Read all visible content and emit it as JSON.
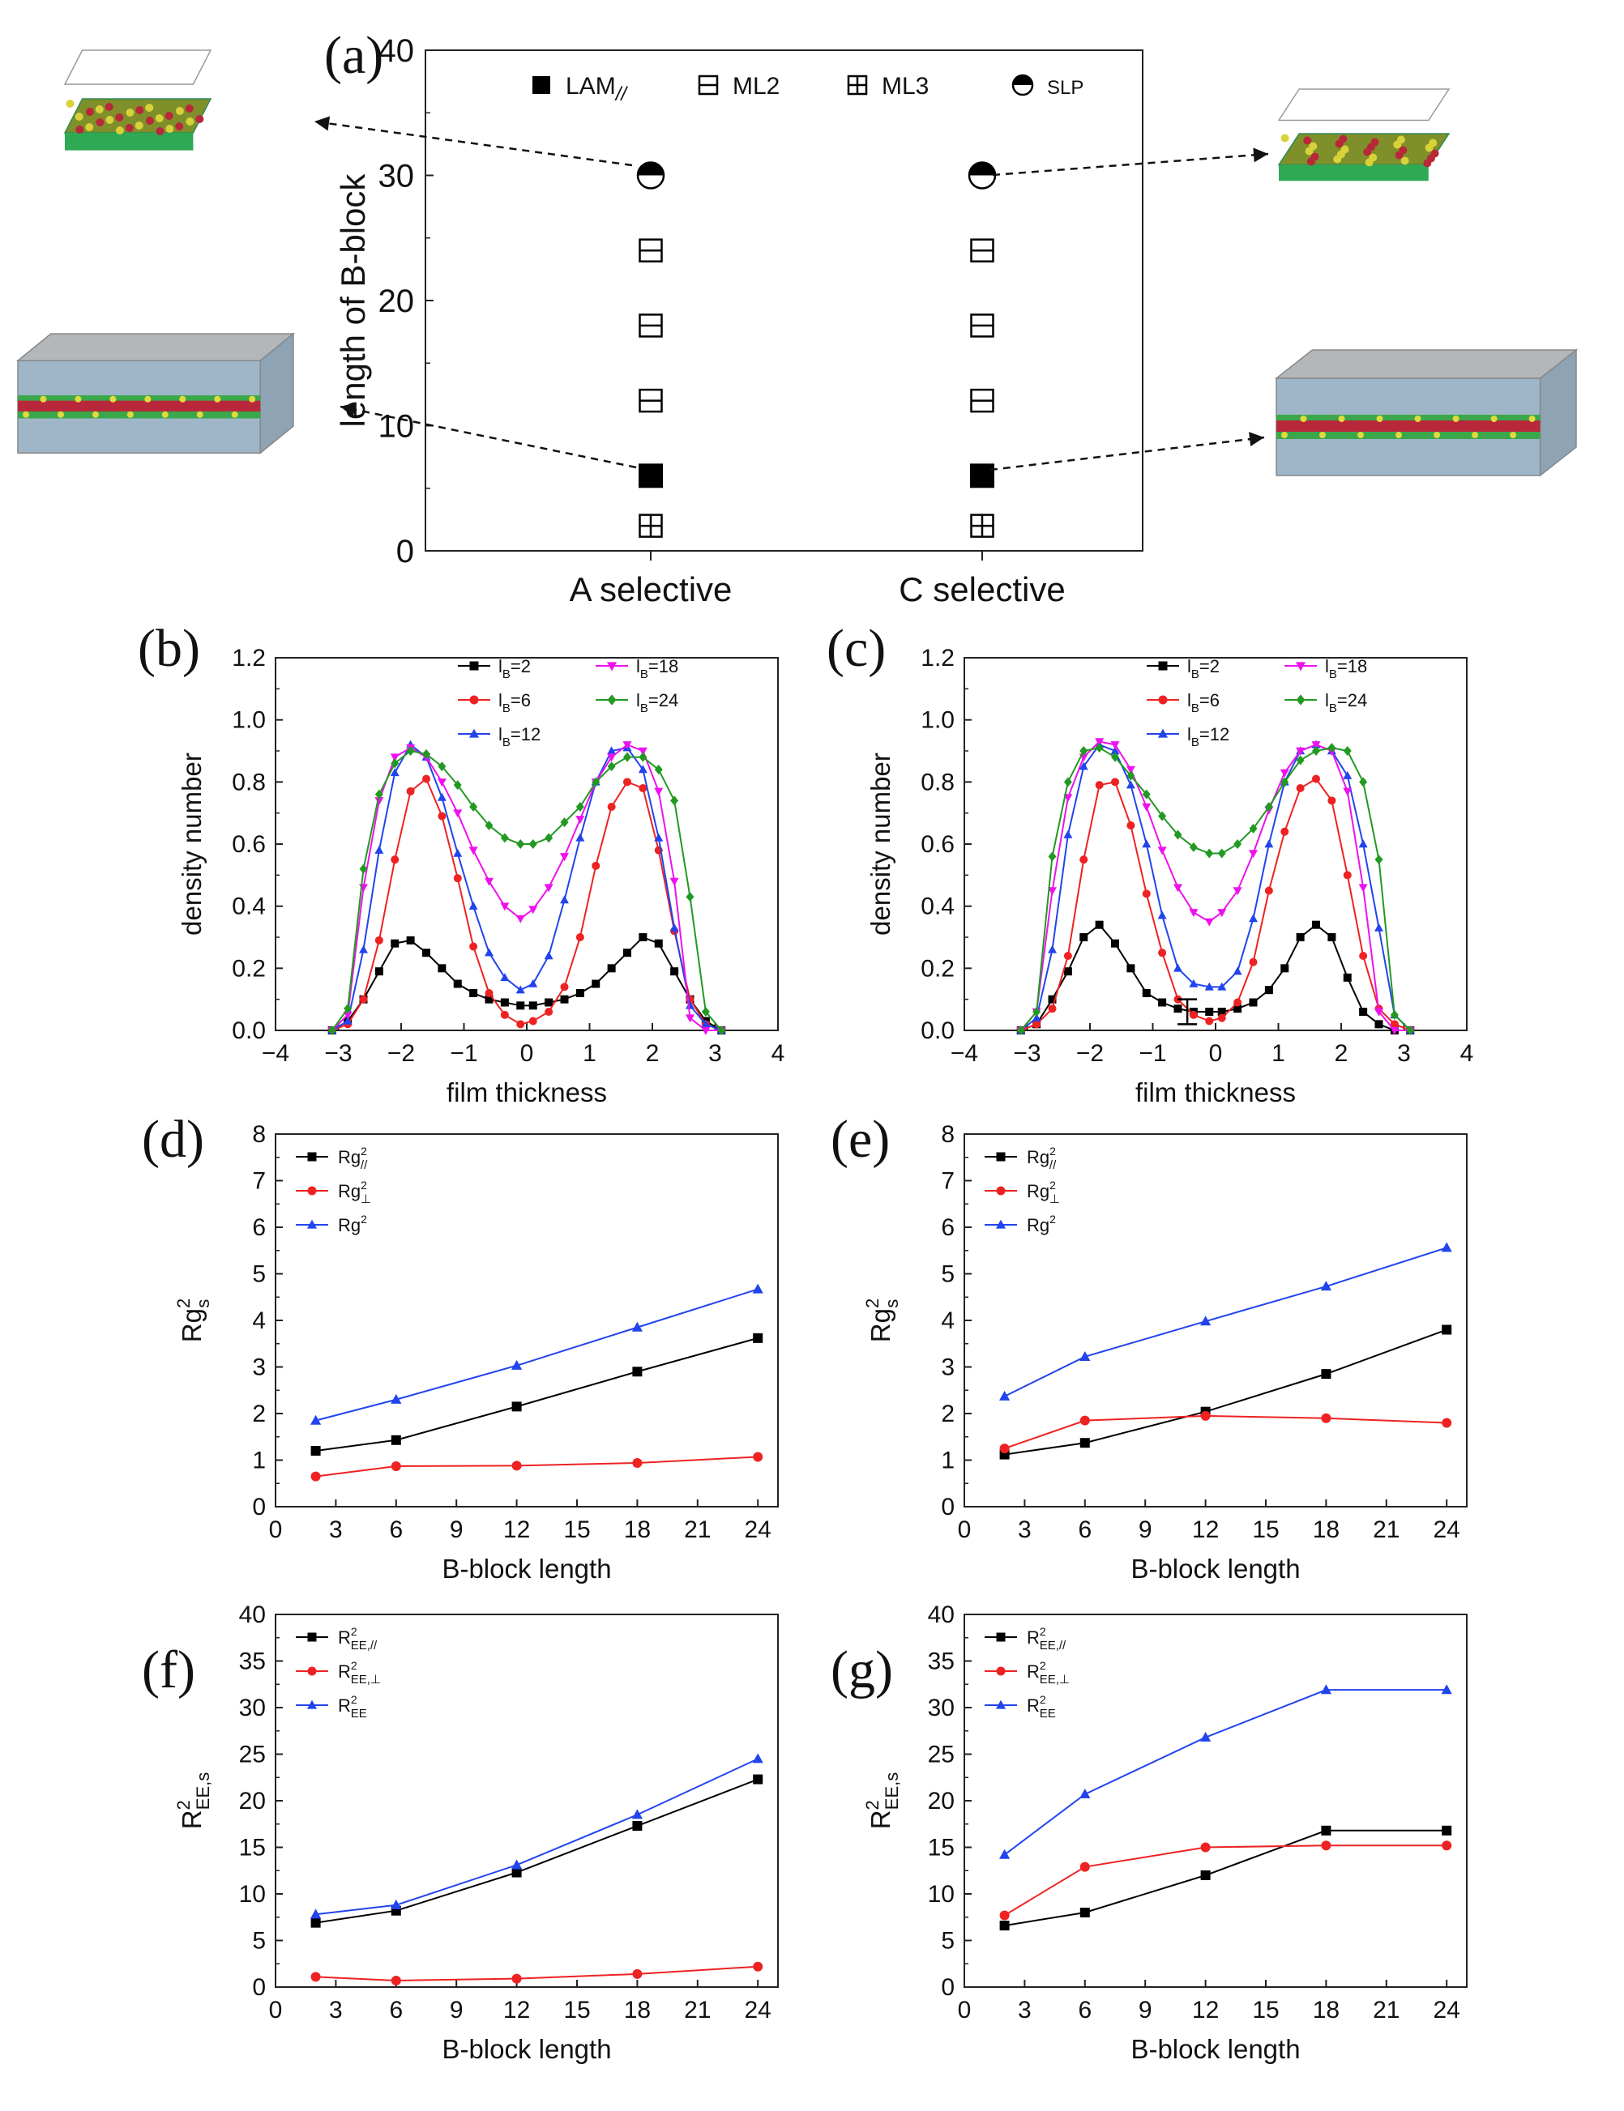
{
  "chart_data": [
    {
      "id": "a",
      "panel_label": "(a)",
      "type": "scatter",
      "title": "",
      "xlabel": "",
      "ylabel": "length of B-block",
      "ylim": [
        0,
        40
      ],
      "yticks": [
        "0",
        "10",
        "20",
        "30",
        "40"
      ],
      "categories": [
        "A selective",
        "C selective"
      ],
      "legend": [
        {
          "marker": "filled-square",
          "label": "LAM//"
        },
        {
          "marker": "square-h-line",
          "label": "ML2"
        },
        {
          "marker": "square-cross",
          "label": "ML3"
        },
        {
          "marker": "half-circle",
          "label": "SLP"
        }
      ],
      "points": [
        {
          "category": "A selective",
          "y": 30,
          "marker": "half-circle"
        },
        {
          "category": "A selective",
          "y": 24,
          "marker": "square-h-line"
        },
        {
          "category": "A selective",
          "y": 18,
          "marker": "square-h-line"
        },
        {
          "category": "A selective",
          "y": 12,
          "marker": "square-h-line"
        },
        {
          "category": "A selective",
          "y": 6,
          "marker": "filled-square"
        },
        {
          "category": "A selective",
          "y": 2,
          "marker": "square-cross"
        },
        {
          "category": "C selective",
          "y": 30,
          "marker": "half-circle"
        },
        {
          "category": "C selective",
          "y": 24,
          "marker": "square-h-line"
        },
        {
          "category": "C selective",
          "y": 18,
          "marker": "square-h-line"
        },
        {
          "category": "C selective",
          "y": 12,
          "marker": "square-h-line"
        },
        {
          "category": "C selective",
          "y": 6,
          "marker": "filled-square"
        },
        {
          "category": "C selective",
          "y": 2,
          "marker": "square-cross"
        }
      ],
      "insets": [
        {
          "name": "A-selective SLP snapshot",
          "style": "thin-film"
        },
        {
          "name": "C-selective SLP snapshot",
          "style": "thin-film"
        },
        {
          "name": "A-selective LAM snapshot",
          "style": "sandwich"
        },
        {
          "name": "C-selective LAM snapshot",
          "style": "sandwich"
        }
      ]
    },
    {
      "id": "b",
      "panel_label": "(b)",
      "type": "line",
      "xlabel": "film thickness",
      "ylabel": "density number",
      "xlim": [
        -4,
        4
      ],
      "ylim": [
        0,
        1.2
      ],
      "xticks": [
        "−4",
        "−3",
        "−2",
        "−1",
        "0",
        "1",
        "2",
        "3",
        "4"
      ],
      "yticks": [
        "0.0",
        "0.2",
        "0.4",
        "0.6",
        "0.8",
        "1.0",
        "1.2"
      ],
      "x": [
        -3.1,
        -2.85,
        -2.6,
        -2.35,
        -2.1,
        -1.85,
        -1.6,
        -1.35,
        -1.1,
        -0.85,
        -0.6,
        -0.35,
        -0.1,
        0.1,
        0.35,
        0.6,
        0.85,
        1.1,
        1.35,
        1.6,
        1.85,
        2.1,
        2.35,
        2.6,
        2.85,
        3.1
      ],
      "series": [
        {
          "name": "lB=2",
          "sub": "B",
          "num": "2",
          "color": "#000000",
          "marker": "square",
          "values": [
            0.0,
            0.03,
            0.1,
            0.19,
            0.28,
            0.29,
            0.25,
            0.2,
            0.15,
            0.12,
            0.1,
            0.09,
            0.08,
            0.08,
            0.09,
            0.1,
            0.12,
            0.15,
            0.2,
            0.25,
            0.3,
            0.28,
            0.19,
            0.1,
            0.03,
            0.0
          ]
        },
        {
          "name": "lB=6",
          "sub": "B",
          "num": "6",
          "color": "#ee2222",
          "marker": "circle",
          "values": [
            0.0,
            0.02,
            0.1,
            0.29,
            0.55,
            0.77,
            0.81,
            0.69,
            0.49,
            0.27,
            0.12,
            0.05,
            0.02,
            0.03,
            0.06,
            0.14,
            0.3,
            0.53,
            0.72,
            0.8,
            0.78,
            0.58,
            0.32,
            0.1,
            0.02,
            0.0
          ]
        },
        {
          "name": "lB=12",
          "sub": "B",
          "num": "12",
          "color": "#2244ee",
          "marker": "triangle",
          "values": [
            0.0,
            0.03,
            0.26,
            0.58,
            0.83,
            0.92,
            0.88,
            0.75,
            0.57,
            0.4,
            0.25,
            0.17,
            0.13,
            0.15,
            0.24,
            0.42,
            0.62,
            0.8,
            0.9,
            0.91,
            0.84,
            0.62,
            0.33,
            0.08,
            0.02,
            0.0
          ]
        },
        {
          "name": "lB=18",
          "sub": "B",
          "num": "18",
          "color": "#ee11ee",
          "marker": "triangle-down",
          "values": [
            0.0,
            0.05,
            0.46,
            0.74,
            0.88,
            0.91,
            0.88,
            0.8,
            0.7,
            0.58,
            0.48,
            0.4,
            0.36,
            0.39,
            0.46,
            0.56,
            0.68,
            0.8,
            0.88,
            0.92,
            0.9,
            0.77,
            0.48,
            0.04,
            0.0,
            0.0
          ]
        },
        {
          "name": "lB=24",
          "sub": "B",
          "num": "24",
          "color": "#229922",
          "marker": "diamond",
          "values": [
            0.0,
            0.07,
            0.52,
            0.76,
            0.86,
            0.9,
            0.89,
            0.85,
            0.79,
            0.72,
            0.66,
            0.62,
            0.6,
            0.6,
            0.62,
            0.67,
            0.72,
            0.8,
            0.85,
            0.88,
            0.88,
            0.84,
            0.74,
            0.43,
            0.06,
            0.0
          ]
        }
      ]
    },
    {
      "id": "c",
      "panel_label": "(c)",
      "type": "line",
      "xlabel": "film thickness",
      "ylabel": "density number",
      "xlim": [
        -4,
        4
      ],
      "ylim": [
        0,
        1.2
      ],
      "xticks": [
        "−4",
        "−3",
        "−2",
        "−1",
        "0",
        "1",
        "2",
        "3",
        "4"
      ],
      "yticks": [
        "0.0",
        "0.2",
        "0.4",
        "0.6",
        "0.8",
        "1.0",
        "1.2"
      ],
      "errorbar": {
        "x": -0.45,
        "y": 0.06,
        "err": 0.04
      },
      "x": [
        -3.1,
        -2.85,
        -2.6,
        -2.35,
        -2.1,
        -1.85,
        -1.6,
        -1.35,
        -1.1,
        -0.85,
        -0.6,
        -0.35,
        -0.1,
        0.1,
        0.35,
        0.6,
        0.85,
        1.1,
        1.35,
        1.6,
        1.85,
        2.1,
        2.35,
        2.6,
        2.85,
        3.1
      ],
      "series": [
        {
          "name": "lB=2",
          "sub": "B",
          "num": "2",
          "color": "#000000",
          "marker": "square",
          "values": [
            0.0,
            0.02,
            0.1,
            0.19,
            0.3,
            0.34,
            0.28,
            0.2,
            0.12,
            0.09,
            0.07,
            0.06,
            0.06,
            0.06,
            0.07,
            0.09,
            0.13,
            0.2,
            0.3,
            0.34,
            0.3,
            0.17,
            0.06,
            0.02,
            0.0,
            0.0
          ]
        },
        {
          "name": "lB=6",
          "sub": "B",
          "num": "6",
          "color": "#ee2222",
          "marker": "circle",
          "values": [
            0.0,
            0.02,
            0.07,
            0.24,
            0.55,
            0.79,
            0.8,
            0.66,
            0.44,
            0.25,
            0.1,
            0.05,
            0.03,
            0.04,
            0.09,
            0.22,
            0.45,
            0.64,
            0.78,
            0.81,
            0.74,
            0.5,
            0.24,
            0.07,
            0.02,
            0.0
          ]
        },
        {
          "name": "lB=12",
          "sub": "B",
          "num": "12",
          "color": "#2244ee",
          "marker": "triangle",
          "values": [
            0.0,
            0.04,
            0.26,
            0.63,
            0.85,
            0.92,
            0.9,
            0.79,
            0.6,
            0.37,
            0.2,
            0.15,
            0.14,
            0.14,
            0.19,
            0.36,
            0.6,
            0.8,
            0.9,
            0.92,
            0.9,
            0.82,
            0.6,
            0.33,
            0.05,
            0.0
          ]
        },
        {
          "name": "lB=18",
          "sub": "B",
          "num": "18",
          "color": "#ee11ee",
          "marker": "triangle-down",
          "values": [
            0.0,
            0.06,
            0.45,
            0.75,
            0.88,
            0.93,
            0.92,
            0.84,
            0.72,
            0.58,
            0.46,
            0.38,
            0.35,
            0.38,
            0.45,
            0.57,
            0.71,
            0.83,
            0.9,
            0.92,
            0.9,
            0.77,
            0.46,
            0.06,
            0.0,
            0.0
          ]
        },
        {
          "name": "lB=24",
          "sub": "B",
          "num": "24",
          "color": "#229922",
          "marker": "diamond",
          "values": [
            0.0,
            0.06,
            0.56,
            0.8,
            0.9,
            0.91,
            0.88,
            0.82,
            0.76,
            0.69,
            0.63,
            0.59,
            0.57,
            0.57,
            0.6,
            0.65,
            0.72,
            0.8,
            0.87,
            0.9,
            0.91,
            0.9,
            0.8,
            0.55,
            0.05,
            0.0
          ]
        }
      ]
    },
    {
      "id": "d",
      "panel_label": "(d)",
      "type": "line",
      "xlabel": "B-block length",
      "ylabel": "Rgs",
      "ylabel_main": "Rg",
      "ylabel_sub": "s",
      "ylabel_sup": "2",
      "xlim": [
        0,
        25
      ],
      "ylim": [
        0,
        8
      ],
      "xticks": [
        "0",
        "3",
        "6",
        "9",
        "12",
        "15",
        "18",
        "21",
        "24"
      ],
      "yticks": [
        "0",
        "1",
        "2",
        "3",
        "4",
        "5",
        "6",
        "7",
        "8"
      ],
      "x": [
        2,
        6,
        12,
        18,
        24
      ],
      "series": [
        {
          "name": "Rg//2",
          "main": "Rg",
          "sub": "//",
          "sup": "2",
          "color": "#000000",
          "marker": "square",
          "values": [
            1.2,
            1.43,
            2.15,
            2.9,
            3.62
          ]
        },
        {
          "name": "Rg⊥2",
          "main": "Rg",
          "sub": "⊥",
          "sup": "2",
          "color": "#ee2222",
          "marker": "circle",
          "values": [
            0.65,
            0.87,
            0.88,
            0.94,
            1.07
          ]
        },
        {
          "name": "Rg2",
          "main": "Rg",
          "sub": "",
          "sup": "2",
          "color": "#2244ee",
          "marker": "triangle",
          "values": [
            1.85,
            2.3,
            3.03,
            3.85,
            4.67
          ]
        }
      ]
    },
    {
      "id": "e",
      "panel_label": "(e)",
      "type": "line",
      "xlabel": "B-block length",
      "ylabel": "Rgs",
      "ylabel_main": "Rg",
      "ylabel_sub": "s",
      "ylabel_sup": "2",
      "xlim": [
        0,
        25
      ],
      "ylim": [
        0,
        8
      ],
      "xticks": [
        "0",
        "3",
        "6",
        "9",
        "12",
        "15",
        "18",
        "21",
        "24"
      ],
      "yticks": [
        "0",
        "1",
        "2",
        "3",
        "4",
        "5",
        "6",
        "7",
        "8"
      ],
      "x": [
        2,
        6,
        12,
        18,
        24
      ],
      "series": [
        {
          "name": "Rg//2",
          "main": "Rg",
          "sub": "//",
          "sup": "2",
          "color": "#000000",
          "marker": "square",
          "values": [
            1.12,
            1.37,
            2.04,
            2.85,
            3.8
          ]
        },
        {
          "name": "Rg⊥2",
          "main": "Rg",
          "sub": "⊥",
          "sup": "2",
          "color": "#ee2222",
          "marker": "circle",
          "values": [
            1.25,
            1.85,
            1.95,
            1.9,
            1.8
          ]
        },
        {
          "name": "Rg2",
          "main": "Rg",
          "sub": "",
          "sup": "2",
          "color": "#2244ee",
          "marker": "triangle",
          "values": [
            2.37,
            3.22,
            3.98,
            4.73,
            5.56
          ]
        }
      ]
    },
    {
      "id": "f",
      "panel_label": "(f)",
      "type": "line",
      "xlabel": "B-block length",
      "ylabel": "REE,s2",
      "ylabel_main": "R",
      "ylabel_sub": "EE,s",
      "ylabel_sup": "2",
      "xlim": [
        0,
        25
      ],
      "ylim": [
        0,
        40
      ],
      "xticks": [
        "0",
        "3",
        "6",
        "9",
        "12",
        "15",
        "18",
        "21",
        "24"
      ],
      "yticks": [
        "0",
        "5",
        "10",
        "15",
        "20",
        "25",
        "30",
        "35",
        "40"
      ],
      "x": [
        2,
        6,
        12,
        18,
        24
      ],
      "series": [
        {
          "name": "REE//2",
          "main": "R",
          "sub": "EE,//",
          "sup": "2",
          "color": "#000000",
          "marker": "square",
          "values": [
            6.9,
            8.2,
            12.3,
            17.3,
            22.3
          ]
        },
        {
          "name": "REE,⊥2",
          "main": "R",
          "sub": "EE,⊥",
          "sup": "2",
          "color": "#ee2222",
          "marker": "circle",
          "values": [
            1.1,
            0.7,
            0.9,
            1.4,
            2.2
          ]
        },
        {
          "name": "REE2",
          "main": "R",
          "sub": "EE",
          "sup": "2",
          "color": "#2244ee",
          "marker": "triangle",
          "values": [
            7.8,
            8.8,
            13.1,
            18.5,
            24.5
          ]
        }
      ]
    },
    {
      "id": "g",
      "panel_label": "(g)",
      "type": "line",
      "xlabel": "B-block length",
      "ylabel": "REE,s2",
      "ylabel_main": "R",
      "ylabel_sub": "EE,s",
      "ylabel_sup": "2",
      "xlim": [
        0,
        25
      ],
      "ylim": [
        0,
        40
      ],
      "xticks": [
        "0",
        "3",
        "6",
        "9",
        "12",
        "15",
        "18",
        "21",
        "24"
      ],
      "yticks": [
        "0",
        "5",
        "10",
        "15",
        "20",
        "25",
        "30",
        "35",
        "40"
      ],
      "x": [
        2,
        6,
        12,
        18,
        24
      ],
      "series": [
        {
          "name": "REE//2",
          "main": "R",
          "sub": "EE,//",
          "sup": "2",
          "color": "#000000",
          "marker": "square",
          "values": [
            6.6,
            8.0,
            12.0,
            16.8,
            16.8
          ]
        },
        {
          "name": "REE,⊥2",
          "main": "R",
          "sub": "EE,⊥",
          "sup": "2",
          "color": "#ee2222",
          "marker": "circle",
          "values": [
            7.7,
            12.9,
            15.0,
            15.2,
            15.2
          ]
        },
        {
          "name": "REE2",
          "main": "R",
          "sub": "EE",
          "sup": "2",
          "color": "#2244ee",
          "marker": "triangle",
          "values": [
            14.2,
            20.7,
            26.8,
            31.9,
            31.9
          ]
        }
      ]
    }
  ]
}
